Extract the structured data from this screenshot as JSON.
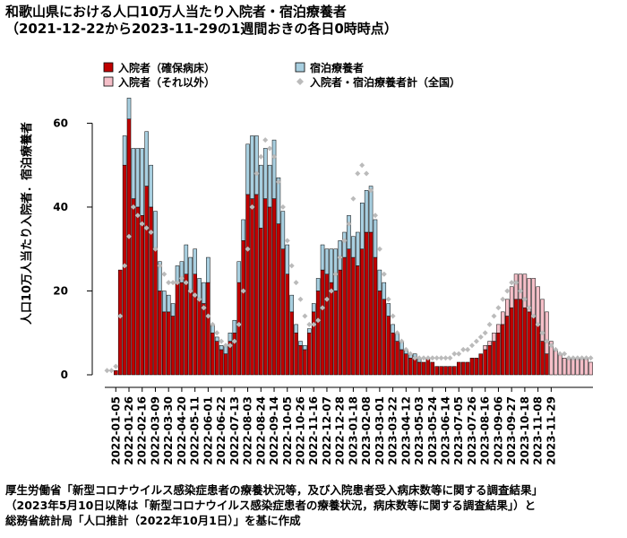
{
  "title": {
    "line1": "和歌山県における人口10万人当たり入院者・宿泊療養者",
    "line2": "（2021-12-22から2023-11-29の1週間おきの各日0時時点）"
  },
  "footer": {
    "line1": "厚生労働省「新型コロナウイルス感染症患者の療養状況等，及び入院患者受入病床数等に関する調査結果」",
    "line2": "（2023年5月10日以降は「新型コロナウイルス感染症患者の療養状況，病床数等に関する調査結果」）と",
    "line3": "総務省統計局「人口推計（2022年10月1日）」を基に作成"
  },
  "chart_data": {
    "type": "bar",
    "ylabel": "人口10万人当たり入院者．宿泊療養者",
    "ylim": [
      0,
      68
    ],
    "yticks": [
      0,
      20,
      40,
      60
    ],
    "legend": [
      {
        "key": "severe",
        "label": "入院者（確保病床）",
        "color": "#c00000",
        "kind": "box"
      },
      {
        "key": "lodging",
        "label": "宿泊療養者",
        "color": "#a8cfe0",
        "kind": "box"
      },
      {
        "key": "other",
        "label": "入院者（それ以外）",
        "color": "#f5bfc8",
        "kind": "box"
      },
      {
        "key": "national",
        "label": "入院者・宿泊療養者計（全国）",
        "color": "#bbbbbb",
        "kind": "diamond"
      }
    ],
    "x_tick_labels": [
      "2022-01-05",
      "2022-01-26",
      "2022-02-16",
      "2022-03-09",
      "2022-03-30",
      "2022-04-20",
      "2022-05-11",
      "2022-06-01",
      "2022-06-22",
      "2022-07-13",
      "2022-08-03",
      "2022-08-24",
      "2022-09-14",
      "2022-10-05",
      "2022-10-26",
      "2022-11-16",
      "2022-12-07",
      "2022-12-28",
      "2023-01-18",
      "2023-02-08",
      "2023-03-01",
      "2023-03-22",
      "2023-04-12",
      "2023-05-03",
      "2023-05-24",
      "2023-06-14",
      "2023-07-05",
      "2023-07-26",
      "2023-08-16",
      "2023-09-06",
      "2023-09-27",
      "2023-10-18",
      "2023-11-08",
      "2023-11-29"
    ],
    "series": [
      {
        "key": "severe",
        "name": "入院者（確保病床）",
        "values": [
          0,
          0,
          1,
          25,
          50,
          61,
          42,
          40,
          38,
          45,
          40,
          30,
          20,
          15,
          15,
          14,
          22,
          22,
          24,
          20,
          24,
          18,
          17,
          22,
          10,
          8,
          6,
          5,
          8,
          10,
          22,
          32,
          43,
          42,
          43,
          35,
          42,
          40,
          42,
          36,
          30,
          24,
          15,
          10,
          7,
          6,
          10,
          15,
          20,
          25,
          24,
          22,
          20,
          25,
          28,
          30,
          28,
          26,
          30,
          34,
          34,
          28,
          20,
          18,
          14,
          10,
          8,
          6,
          5,
          4,
          4,
          3,
          3,
          4,
          3,
          2,
          2,
          2,
          2,
          2,
          3,
          3,
          3,
          4,
          4,
          5,
          6,
          7,
          8,
          10,
          12,
          14,
          16,
          18,
          18,
          16,
          15,
          14,
          12,
          8,
          5,
          0,
          0,
          0,
          0,
          0,
          0,
          0,
          0,
          0,
          0
        ]
      },
      {
        "key": "other",
        "name": "入院者（それ以外）",
        "values": [
          0,
          0,
          0,
          0,
          0,
          0,
          0,
          0,
          0,
          0,
          0,
          0,
          0,
          0,
          0,
          0,
          0,
          0,
          0,
          0,
          0,
          0,
          0,
          0,
          0,
          0,
          0,
          0,
          0,
          0,
          0,
          0,
          0,
          0,
          0,
          0,
          0,
          0,
          0,
          0,
          0,
          0,
          0,
          0,
          0,
          0,
          0,
          0,
          0,
          0,
          0,
          0,
          0,
          0,
          0,
          0,
          0,
          0,
          0,
          0,
          0,
          0,
          0,
          0,
          0,
          0,
          0,
          0,
          0,
          0,
          0,
          0,
          0,
          0,
          0,
          0,
          0,
          0,
          0,
          0,
          0,
          0,
          0,
          0,
          0,
          0,
          1,
          1,
          2,
          2,
          3,
          4,
          5,
          6,
          6,
          8,
          8,
          9,
          9,
          10,
          10,
          8,
          6,
          5,
          4,
          4,
          4,
          4,
          4,
          4,
          3
        ]
      },
      {
        "key": "lodging",
        "name": "宿泊療養者",
        "values": [
          0,
          0,
          0,
          0,
          7,
          5,
          12,
          14,
          16,
          13,
          10,
          9,
          7,
          5,
          4,
          3,
          4,
          5,
          7,
          8,
          6,
          5,
          5,
          6,
          2,
          1,
          1,
          2,
          2,
          3,
          5,
          5,
          12,
          15,
          14,
          15,
          12,
          10,
          14,
          11,
          9,
          7,
          4,
          2,
          1,
          1,
          1,
          2,
          3,
          6,
          6,
          8,
          10,
          7,
          6,
          8,
          5,
          8,
          11,
          10,
          11,
          9,
          5,
          4,
          3,
          2,
          2,
          2,
          1,
          1,
          1,
          1,
          0,
          0,
          0,
          0,
          0,
          0,
          0,
          0,
          0,
          0,
          0,
          0,
          0,
          0,
          0,
          0,
          0,
          0,
          0,
          0,
          0,
          0,
          0,
          0,
          0,
          0,
          0,
          0,
          0,
          0,
          0,
          0,
          0,
          0,
          0,
          0,
          0,
          0,
          0
        ]
      },
      {
        "key": "national",
        "name": "入院者・宿泊療養者計（全国）",
        "values": [
          1,
          1,
          2,
          14,
          26,
          33,
          40,
          38,
          36,
          35,
          34,
          30,
          26,
          24,
          22,
          22,
          22,
          23,
          22,
          20,
          19,
          18,
          16,
          14,
          12,
          10,
          8,
          7,
          7,
          8,
          12,
          20,
          30,
          40,
          48,
          52,
          56,
          54,
          52,
          46,
          40,
          32,
          26,
          22,
          18,
          14,
          12,
          12,
          13,
          16,
          18,
          20,
          24,
          28,
          32,
          36,
          42,
          48,
          50,
          48,
          44,
          38,
          30,
          24,
          18,
          14,
          10,
          8,
          6,
          5,
          4,
          4,
          4,
          4,
          4,
          4,
          4,
          4,
          4,
          5,
          5,
          6,
          6,
          7,
          8,
          9,
          10,
          12,
          14,
          16,
          18,
          20,
          22,
          22,
          20,
          18,
          16,
          14,
          12,
          10,
          8,
          7,
          6,
          5,
          5,
          4,
          4,
          4,
          4,
          4,
          4
        ]
      }
    ]
  }
}
